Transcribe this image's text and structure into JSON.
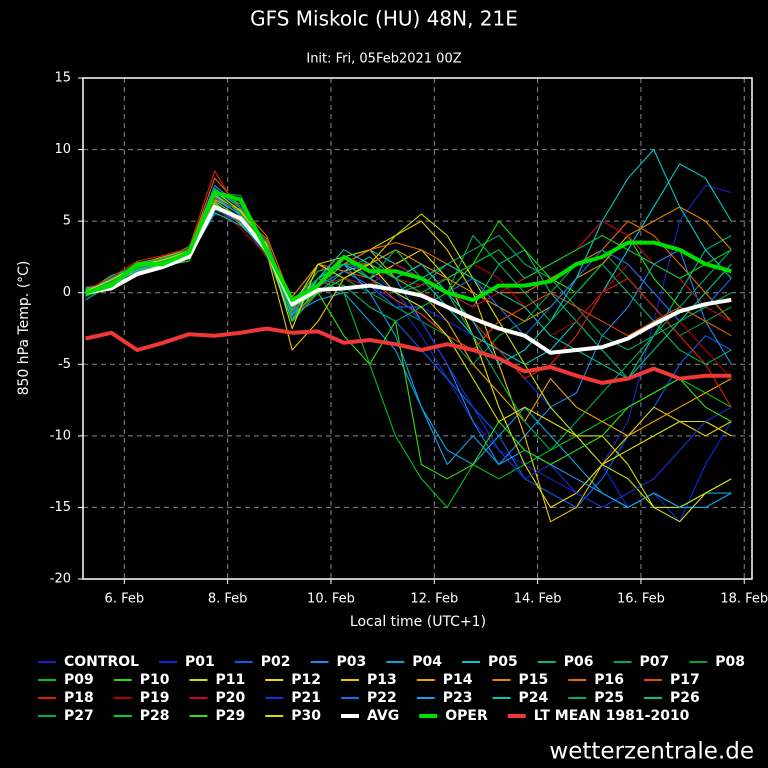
{
  "chart_data": {
    "type": "line",
    "title": "GFS Miskolc (HU) 48N, 21E",
    "subtitle": "Init: Fri, 05Feb2021 00Z",
    "xlabel": "Local time (UTC+1)",
    "ylabel": "850 hPa Temp. (°C)",
    "watermark": "wetterzentrale.de",
    "grid": true,
    "xlim": [
      5.2,
      18.15
    ],
    "ylim": [
      -20,
      15
    ],
    "xticks": [
      {
        "value": 6,
        "label": "6. Feb"
      },
      {
        "value": 8,
        "label": "8. Feb"
      },
      {
        "value": 10,
        "label": "10. Feb"
      },
      {
        "value": 12,
        "label": "12. Feb"
      },
      {
        "value": 14,
        "label": "14. Feb"
      },
      {
        "value": 16,
        "label": "16. Feb"
      },
      {
        "value": 18,
        "label": "18. Feb"
      }
    ],
    "yticks": [
      -20,
      -15,
      -10,
      -5,
      0,
      5,
      10,
      15
    ],
    "x": [
      5.25,
      5.75,
      6.25,
      6.75,
      7.25,
      7.75,
      8.25,
      8.75,
      9.25,
      9.75,
      10.25,
      10.75,
      11.25,
      11.75,
      12.25,
      12.75,
      13.25,
      13.75,
      14.25,
      14.75,
      15.25,
      15.75,
      16.25,
      16.75,
      17.25,
      17.75
    ],
    "series": [
      {
        "name": "CONTROL",
        "color": "#2020c8",
        "values": [
          0,
          1,
          1.5,
          2,
          2.5,
          6,
          6,
          3,
          -1.5,
          0,
          1,
          0.5,
          -0.5,
          -3,
          -6,
          -9,
          -11,
          -12,
          -13,
          -14,
          -12,
          -9,
          -2,
          5,
          7.5,
          7
        ]
      },
      {
        "name": "P01",
        "color": "#0030e0",
        "values": [
          0.3,
          0.8,
          2,
          2.2,
          3,
          7,
          5.5,
          3.5,
          -1,
          1,
          2,
          1,
          0,
          -1,
          -2,
          -3,
          -4,
          -6,
          -8,
          -10,
          -12,
          -15,
          -14,
          -16,
          -12,
          -9
        ]
      },
      {
        "name": "P02",
        "color": "#0060f0",
        "values": [
          -0.2,
          0.5,
          1.2,
          1.8,
          2.5,
          5.5,
          5,
          2.5,
          -0.5,
          1,
          0.5,
          -1,
          -2,
          -4,
          -6,
          -8,
          -10,
          -13,
          -14,
          -15,
          -13,
          -10,
          -8,
          -5,
          -3,
          -4
        ]
      },
      {
        "name": "P03",
        "color": "#2088f0",
        "values": [
          0.1,
          1,
          1.8,
          2.5,
          3,
          7.5,
          6,
          3,
          -2,
          0.5,
          1.5,
          2,
          1,
          -2,
          -5,
          -9,
          -12,
          -10,
          -8,
          -7,
          -3,
          -1,
          2,
          3,
          -2,
          -5
        ]
      },
      {
        "name": "P04",
        "color": "#00a8e0",
        "values": [
          0.4,
          0.2,
          1.5,
          2,
          2.5,
          6,
          5.2,
          3,
          -1.5,
          -0.5,
          0,
          -2,
          -4,
          -8,
          -11,
          -12,
          -10,
          -8,
          -10,
          -12,
          -14,
          -15,
          -14,
          -15,
          -14,
          -14
        ]
      },
      {
        "name": "P05",
        "color": "#00c8d0",
        "values": [
          0,
          1.2,
          1.8,
          2.3,
          2.8,
          6.5,
          5.5,
          3,
          -1,
          0.5,
          2,
          3,
          2,
          1,
          -1,
          -3,
          -4,
          -5,
          -4,
          -2,
          0,
          3,
          6,
          9,
          8,
          5
        ]
      },
      {
        "name": "P06",
        "color": "#00b880",
        "values": [
          -0.5,
          0.6,
          1.3,
          2.1,
          2.6,
          6.2,
          4.8,
          3.2,
          -2,
          0,
          1.5,
          2.5,
          1,
          2,
          0,
          -1,
          2,
          3,
          0,
          -2,
          -4,
          -6,
          -3,
          0,
          3,
          4
        ]
      },
      {
        "name": "P07",
        "color": "#00a860",
        "values": [
          0.2,
          0.5,
          2,
          2.4,
          2.8,
          5.8,
          5,
          3.5,
          -1,
          1,
          2.5,
          1,
          0,
          0.5,
          2,
          3,
          4,
          2,
          1,
          -1,
          -3,
          -4,
          -3,
          -1,
          1,
          3
        ]
      },
      {
        "name": "P08",
        "color": "#00a040",
        "values": [
          0,
          0.8,
          1.7,
          2.2,
          3,
          7,
          6.8,
          3,
          -1.5,
          0,
          1,
          0,
          -1,
          -2,
          -3,
          -5,
          -3,
          -2,
          0,
          2,
          3,
          1,
          -1,
          -3,
          -2,
          -1
        ]
      },
      {
        "name": "P09",
        "color": "#00c020",
        "values": [
          -0.3,
          0.9,
          2.1,
          2.4,
          3.2,
          7.2,
          6,
          3,
          -0.5,
          1,
          0,
          -5,
          -10,
          -13,
          -15,
          -12,
          -13,
          -12,
          -11,
          -10,
          -9,
          -8,
          -7,
          -6,
          -7,
          -8
        ]
      },
      {
        "name": "P10",
        "color": "#20e000",
        "values": [
          0.2,
          0.3,
          1.4,
          1.9,
          2.2,
          6,
          5,
          2.8,
          -2,
          0.5,
          2,
          2,
          3,
          1,
          0,
          2,
          5,
          3,
          1,
          0,
          2,
          4,
          1,
          -1,
          -2,
          -3
        ]
      },
      {
        "name": "P11",
        "color": "#c8e000",
        "values": [
          0,
          0.7,
          1.6,
          2,
          2.6,
          6.4,
          5.2,
          2.7,
          -1,
          2,
          2.5,
          3,
          4,
          5.5,
          4,
          1,
          -2,
          -5,
          -8,
          -10,
          -12,
          -13,
          -15,
          -15,
          -14,
          -13
        ]
      },
      {
        "name": "P12",
        "color": "#e8e000",
        "values": [
          0.1,
          0.4,
          1.9,
          2.3,
          2.9,
          6.8,
          5.6,
          3.1,
          -0.8,
          1.5,
          2,
          1,
          2,
          3,
          1,
          -3,
          -8,
          -12,
          -15,
          -14,
          -12,
          -11,
          -10,
          -9,
          -9,
          -10
        ]
      },
      {
        "name": "P13",
        "color": "#e8c800",
        "values": [
          -0.1,
          1,
          1.5,
          2,
          2.7,
          6.3,
          4.8,
          2.9,
          -4,
          -2,
          1,
          2,
          4,
          5,
          3,
          0,
          -5,
          -10,
          -16,
          -15,
          -12,
          -10,
          -8,
          -9,
          -10,
          -9
        ]
      },
      {
        "name": "P14",
        "color": "#e8a800",
        "values": [
          0.3,
          0.6,
          2,
          2.5,
          3,
          6.5,
          5.8,
          3.3,
          -1.2,
          1,
          2,
          3,
          1,
          0,
          -2,
          -5,
          -7,
          -9,
          -6,
          -8,
          -9,
          -10,
          -9,
          -8,
          -7,
          -6
        ]
      },
      {
        "name": "P15",
        "color": "#e88800",
        "values": [
          0,
          0.9,
          1.8,
          2.1,
          2.4,
          6,
          5,
          3.1,
          -0.3,
          2,
          1.5,
          2,
          3,
          2,
          1,
          0,
          -1,
          -2,
          -1,
          1,
          2,
          4,
          5,
          6,
          5,
          3
        ]
      },
      {
        "name": "P16",
        "color": "#e86800",
        "values": [
          0.2,
          0.5,
          1.6,
          2.2,
          2.9,
          8,
          6,
          4,
          -0.6,
          1,
          2,
          3,
          3.5,
          3,
          2,
          1,
          0,
          0,
          1,
          2,
          3,
          5,
          4,
          2,
          0,
          -2
        ]
      },
      {
        "name": "P17",
        "color": "#e84800",
        "values": [
          -0.2,
          0.8,
          1.4,
          2.3,
          2.6,
          5.8,
          5.3,
          3.8,
          -1.3,
          0.5,
          1.5,
          1,
          -0.5,
          -1.5,
          -3,
          -4,
          -2,
          -1,
          0,
          -1,
          -2,
          -3,
          -2,
          -1,
          -2,
          -3
        ]
      },
      {
        "name": "P18",
        "color": "#e02000",
        "values": [
          0.1,
          1.1,
          2.2,
          2.6,
          3.1,
          8.5,
          5.5,
          3.4,
          -1.7,
          0,
          1,
          2,
          1,
          0,
          -1,
          -2,
          -4,
          -6,
          -5,
          -3,
          0,
          1,
          -1,
          -3,
          -5,
          -8
        ]
      },
      {
        "name": "P19",
        "color": "#b80000",
        "values": [
          0,
          0.6,
          1.5,
          2,
          2.5,
          6,
          4.5,
          2.6,
          -0.9,
          1.5,
          2.5,
          2,
          1,
          0.5,
          1,
          2,
          1,
          -1,
          -3,
          -2,
          0,
          2,
          0,
          -2,
          -4,
          -6
        ]
      },
      {
        "name": "P20",
        "color": "#d00030",
        "values": [
          0.4,
          0.7,
          1.7,
          2.2,
          2.8,
          6.6,
          5.7,
          3,
          -1.1,
          0.5,
          1,
          0.5,
          2,
          1,
          0,
          -1,
          0,
          1,
          2,
          3,
          5,
          4,
          2,
          1,
          -1,
          -2
        ]
      },
      {
        "name": "P21",
        "color": "#1830d8",
        "values": [
          -0.3,
          1,
          2,
          2.4,
          2.9,
          7,
          6,
          3.2,
          -0.7,
          1,
          2,
          1.5,
          0,
          -2,
          -5,
          -8,
          -11,
          -13,
          -12,
          -14,
          -15,
          -14,
          -13,
          -11,
          -9,
          -8
        ]
      },
      {
        "name": "P22",
        "color": "#1070f0",
        "values": [
          0.2,
          0.4,
          1.3,
          1.9,
          2.4,
          5.9,
          4.9,
          2.8,
          -1.4,
          0.5,
          1.5,
          0.5,
          -1,
          -1,
          0,
          1,
          -1,
          -3,
          -1,
          1,
          3,
          2,
          0,
          -2,
          -1,
          1
        ]
      },
      {
        "name": "P23",
        "color": "#10a0f0",
        "values": [
          0,
          0.9,
          1.9,
          2.3,
          2.7,
          6.7,
          5.4,
          3.3,
          -1.6,
          1,
          2,
          0,
          -3,
          -8,
          -12,
          -10,
          -12,
          -11,
          -12,
          -13,
          -14,
          -15,
          -14,
          -15,
          -15,
          -14
        ]
      },
      {
        "name": "P24",
        "color": "#00c8c0",
        "values": [
          0.1,
          0.5,
          1.6,
          2.1,
          2.6,
          6.1,
          5.1,
          2.9,
          -1.9,
          1,
          3,
          2,
          1,
          2,
          0,
          -2,
          -5,
          -4,
          -2,
          1,
          5,
          8,
          10,
          6,
          3,
          1
        ]
      },
      {
        "name": "P25",
        "color": "#00b060",
        "values": [
          -0.1,
          0.8,
          1.8,
          2.2,
          3,
          7.3,
          5.9,
          3.6,
          -0.9,
          1.5,
          2,
          1,
          3,
          1,
          0,
          4,
          2,
          0,
          -2,
          0,
          2,
          0,
          -2,
          -4,
          -5,
          -4
        ]
      },
      {
        "name": "P26",
        "color": "#00c090",
        "values": [
          0.3,
          0.6,
          1.5,
          2,
          2.5,
          5.6,
          4.7,
          3,
          -1.2,
          1,
          2,
          1,
          0,
          1,
          2,
          1,
          0,
          -1,
          -3,
          -4,
          -5,
          -6,
          -4,
          -2,
          0,
          2
        ]
      },
      {
        "name": "P27",
        "color": "#00b050",
        "values": [
          0,
          1,
          2,
          2.4,
          3,
          7,
          6.2,
          3.3,
          -0.8,
          1,
          0.5,
          -1,
          -2,
          -1,
          0,
          -3,
          -6,
          -9,
          -11,
          -9,
          -7,
          -5,
          -3,
          -2,
          -1,
          0
        ]
      },
      {
        "name": "P28",
        "color": "#00d030",
        "values": [
          0.2,
          0.7,
          1.7,
          2.3,
          2.8,
          6.9,
          5.6,
          3.1,
          -1.5,
          0,
          1,
          2,
          1,
          0,
          1,
          2,
          3,
          1,
          2,
          3,
          4,
          3,
          2,
          1,
          2,
          3
        ]
      },
      {
        "name": "P29",
        "color": "#30e010",
        "values": [
          -0.2,
          0.3,
          1.4,
          2,
          2.6,
          6.4,
          5.2,
          2.7,
          -1,
          0,
          -3,
          -5,
          -2,
          -12,
          -13,
          -12,
          -9,
          -11,
          -12,
          -11,
          -10,
          -8,
          -7,
          -6,
          -8,
          -9
        ]
      },
      {
        "name": "P30",
        "color": "#d8e000",
        "values": [
          0.1,
          0.9,
          1.9,
          2.3,
          2.9,
          7.1,
          5.7,
          3.4,
          -2.5,
          2,
          1,
          2,
          0,
          -1,
          -3,
          -6,
          -9,
          -8,
          -9,
          -10,
          -10,
          -12,
          -15,
          -16,
          -14,
          -13
        ]
      },
      {
        "name": "AVG",
        "color": "#ffffff",
        "width": 4,
        "values": [
          0,
          0.3,
          1.3,
          1.8,
          2.5,
          6,
          5.2,
          3,
          -0.8,
          0.2,
          0.3,
          0.5,
          0.2,
          -0.2,
          -1,
          -1.8,
          -2.5,
          -3,
          -4.2,
          -4,
          -3.8,
          -3.2,
          -2.2,
          -1.3,
          -0.8,
          -0.5
        ]
      },
      {
        "name": "OPER",
        "color": "#00e000",
        "width": 4,
        "values": [
          0,
          0.5,
          2,
          2,
          2.8,
          7,
          6.5,
          3,
          -0.5,
          0.5,
          2.5,
          1.5,
          1.5,
          1,
          0,
          -0.5,
          0.5,
          0.5,
          0.8,
          2,
          2.5,
          3.5,
          3.5,
          3,
          2,
          1.5
        ]
      },
      {
        "name": "LT MEAN 1981-2010",
        "color": "#f03838",
        "width": 4,
        "values": [
          -3.2,
          -2.8,
          -4,
          -3.5,
          -2.9,
          -3,
          -2.8,
          -2.5,
          -2.8,
          -2.7,
          -3.5,
          -3.3,
          -3.6,
          -4,
          -3.6,
          -4,
          -4.6,
          -5.5,
          -5.2,
          -5.8,
          -6.3,
          -6,
          -5.3,
          -6,
          -5.8,
          -5.8
        ]
      }
    ]
  }
}
